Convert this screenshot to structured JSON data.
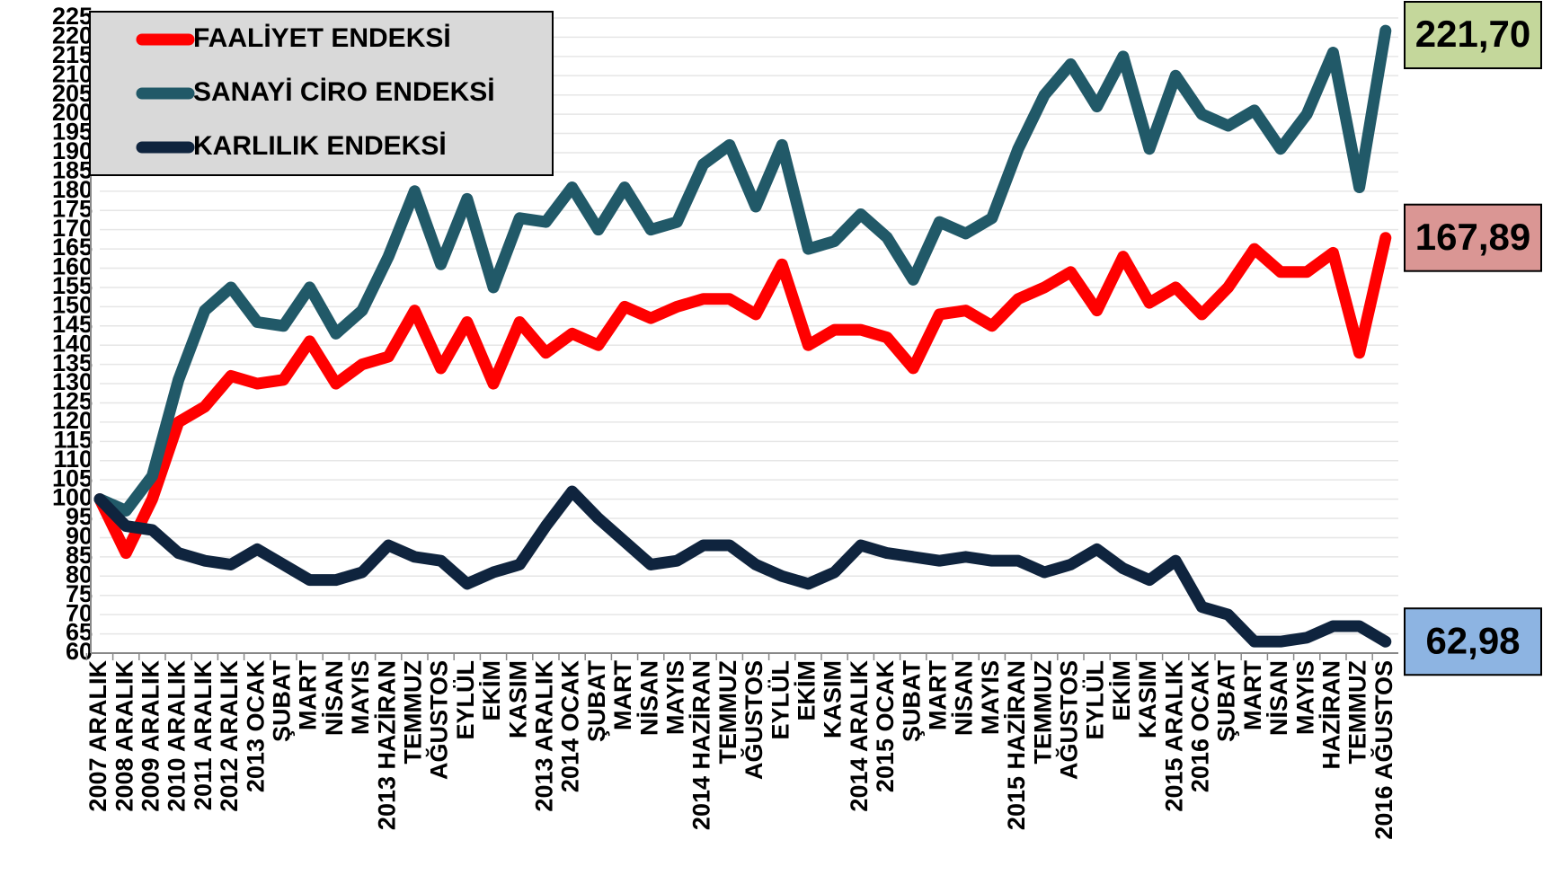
{
  "chart_data": {
    "type": "line",
    "categories": [
      "2007 ARALIK",
      "2008 ARALIK",
      "2009 ARALIK",
      "2010 ARALIK",
      "2011 ARALIK",
      "2012 ARALIK",
      "2013 OCAK",
      "ŞUBAT",
      "MART",
      "NİSAN",
      "MAYIS",
      "2013 HAZİRAN",
      "TEMMUZ",
      "AĞUSTOS",
      "EYLÜL",
      "EKİM",
      "KASIM",
      "2013 ARALIK",
      "2014 OCAK",
      "ŞUBAT",
      "MART",
      "NİSAN",
      "MAYIS",
      "2014 HAZİRAN",
      "TEMMUZ",
      "AĞUSTOS",
      "EYLÜL",
      "EKİM",
      "KASIM",
      "2014 ARALIK",
      "2015 OCAK",
      "ŞUBAT",
      "MART",
      "NİSAN",
      "MAYIS",
      "2015 HAZİRAN",
      "TEMMUZ",
      "AĞUSTOS",
      "EYLÜL",
      "EKİM",
      "KASIM",
      "2015 ARALIK",
      "2016 OCAK",
      "ŞUBAT",
      "MART",
      "NİSAN",
      "MAYIS",
      "HAZİRAN",
      "TEMMUZ",
      "2016 AĞUSTOS"
    ],
    "series": [
      {
        "name": "FAALİYET ENDEKSİ",
        "color": "#ff0000",
        "label_color": "#da9694",
        "values": [
          100,
          86,
          100,
          120,
          124,
          132,
          130,
          131,
          141,
          130,
          135,
          137,
          149,
          134,
          146,
          130,
          146,
          138,
          143,
          140,
          150,
          147,
          150,
          152,
          152,
          148,
          161,
          140,
          144,
          144,
          142,
          134,
          148,
          149,
          145,
          152,
          155,
          159,
          149,
          163,
          151,
          155,
          148,
          155,
          165,
          159,
          159,
          164,
          138,
          167.89
        ],
        "value_labels": [
          null,
          null,
          null,
          null,
          null,
          null,
          null,
          null,
          null,
          null,
          null,
          null,
          null,
          null,
          null,
          null,
          null,
          null,
          null,
          null,
          null,
          null,
          null,
          null,
          null,
          null,
          null,
          null,
          null,
          null,
          null,
          null,
          null,
          null,
          null,
          null,
          null,
          null,
          null,
          null,
          null,
          null,
          null,
          null,
          null,
          null,
          null,
          null,
          null,
          "167,89"
        ]
      },
      {
        "name": "SANAYİ CİRO ENDEKSİ",
        "color": "#215968",
        "label_color": "#c4d79b",
        "values": [
          100,
          97,
          106,
          131,
          149,
          155,
          146,
          145,
          155,
          143,
          149,
          163,
          180,
          161,
          178,
          155,
          173,
          172,
          181,
          170,
          181,
          170,
          172,
          187,
          192,
          176,
          192,
          165,
          167,
          174,
          168,
          157,
          172,
          169,
          173,
          191,
          205,
          213,
          202,
          215,
          191,
          210,
          200,
          197,
          201,
          191,
          200,
          216,
          181,
          221.7
        ],
        "value_labels": [
          null,
          null,
          null,
          null,
          null,
          null,
          null,
          null,
          null,
          null,
          null,
          null,
          null,
          null,
          null,
          null,
          null,
          null,
          null,
          null,
          null,
          null,
          null,
          null,
          null,
          null,
          null,
          null,
          null,
          null,
          null,
          null,
          null,
          null,
          null,
          null,
          null,
          null,
          null,
          null,
          null,
          null,
          null,
          null,
          null,
          null,
          null,
          null,
          null,
          "221,70"
        ]
      },
      {
        "name": "KARLILIK ENDEKSİ",
        "color": "#0f243e",
        "label_color": "#8db4e2",
        "values": [
          100,
          93,
          92,
          86,
          84,
          83,
          87,
          83,
          79,
          79,
          81,
          88,
          85,
          84,
          78,
          81,
          83,
          93,
          102,
          95,
          89,
          83,
          84,
          88,
          88,
          83,
          80,
          78,
          81,
          88,
          86,
          85,
          84,
          85,
          84,
          84,
          81,
          83,
          87,
          82,
          79,
          84,
          72,
          70,
          63,
          63,
          64,
          67,
          67,
          62.98
        ],
        "value_labels": [
          null,
          null,
          null,
          null,
          null,
          null,
          null,
          null,
          null,
          null,
          null,
          null,
          null,
          null,
          null,
          null,
          null,
          null,
          null,
          null,
          null,
          null,
          null,
          null,
          null,
          null,
          null,
          null,
          null,
          null,
          null,
          null,
          null,
          null,
          null,
          null,
          null,
          null,
          null,
          null,
          null,
          null,
          null,
          null,
          null,
          null,
          null,
          null,
          null,
          "62,98"
        ]
      }
    ],
    "ylim": [
      60,
      225
    ],
    "yticks": [
      60,
      65,
      70,
      75,
      80,
      85,
      90,
      95,
      100,
      105,
      110,
      115,
      120,
      125,
      130,
      135,
      140,
      145,
      150,
      155,
      160,
      165,
      170,
      175,
      180,
      185,
      190,
      195,
      200,
      205,
      210,
      215,
      220,
      225
    ],
    "grid": true,
    "legend": "upper left"
  }
}
